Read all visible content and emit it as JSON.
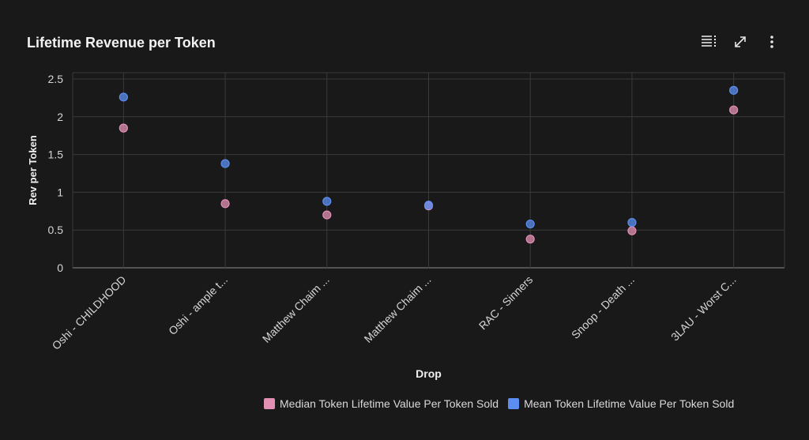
{
  "header": {
    "title": "Lifetime Revenue per Token",
    "icons": [
      "list-icon",
      "expand-icon",
      "more-vertical-icon"
    ]
  },
  "colors": {
    "background": "#1a1919",
    "grid": "#3a3a3a",
    "median": "#e38fb4",
    "mean": "#5b8ef0"
  },
  "chart_data": {
    "type": "scatter",
    "title": "Lifetime Revenue per Token",
    "xlabel": "Drop",
    "ylabel": "Rev per Token",
    "ylim": [
      0,
      2.5
    ],
    "yticks": [
      "0",
      "0.5",
      "1",
      "1.5",
      "2",
      "2.5"
    ],
    "grid": true,
    "legend_position": "bottom-right",
    "categories": [
      "Oshi - CHILDHOOD",
      "Oshi - ample t...",
      "Matthew Chaim ...",
      "Matthew Chaim ...",
      "RAC - Sinners",
      "Snoop - Death ...",
      "3LAU - Worst C..."
    ],
    "series": [
      {
        "name": "Median Token Lifetime Value Per Token Sold",
        "color": "#e38fb4",
        "values": [
          1.85,
          0.85,
          0.7,
          0.82,
          0.38,
          0.49,
          2.09
        ]
      },
      {
        "name": "Mean Token Lifetime Value Per Token Sold",
        "color": "#5b8ef0",
        "values": [
          2.26,
          1.38,
          0.88,
          0.83,
          0.58,
          0.6,
          2.35
        ]
      }
    ]
  }
}
